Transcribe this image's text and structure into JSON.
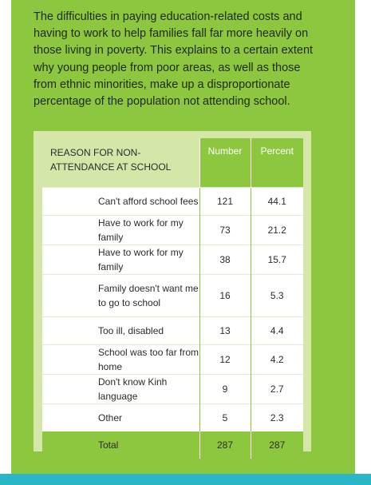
{
  "intro_text": "The difficulties in paying education-related costs and having to work to help families fall far more heavily on those living in poverty. This explains to a certain extent why young people from poor areas, as well as those from ethnic minorities, make up a disproportionate percentage of the population not attending school.",
  "table": {
    "headers": {
      "reason": "Reason for non-attendance at school",
      "number": "Number",
      "percent": "Percent"
    },
    "rows": [
      {
        "reason": "Can't afford school fees",
        "number": "121",
        "percent": "44.1"
      },
      {
        "reason": "Have to work for my family",
        "number": "73",
        "percent": "21.2"
      },
      {
        "reason": "Have to work for my family",
        "number": "38",
        "percent": "15.7"
      },
      {
        "reason": "Family doesn't want me to go to school",
        "number": "16",
        "percent": "5.3"
      },
      {
        "reason": "Too ill, disabled",
        "number": "13",
        "percent": "4.4"
      },
      {
        "reason": "School was too far from home",
        "number": "12",
        "percent": "4.2"
      },
      {
        "reason": "Don't know Kinh language",
        "number": "9",
        "percent": "2.7"
      },
      {
        "reason": "Other",
        "number": "5",
        "percent": "2.3"
      }
    ],
    "total": {
      "label": "Total",
      "number": "287",
      "percent": "287"
    }
  },
  "colors": {
    "panel": "#8dc63f",
    "table_frame": "#d4e7a8",
    "bottom_bar": "#29b6c9"
  }
}
